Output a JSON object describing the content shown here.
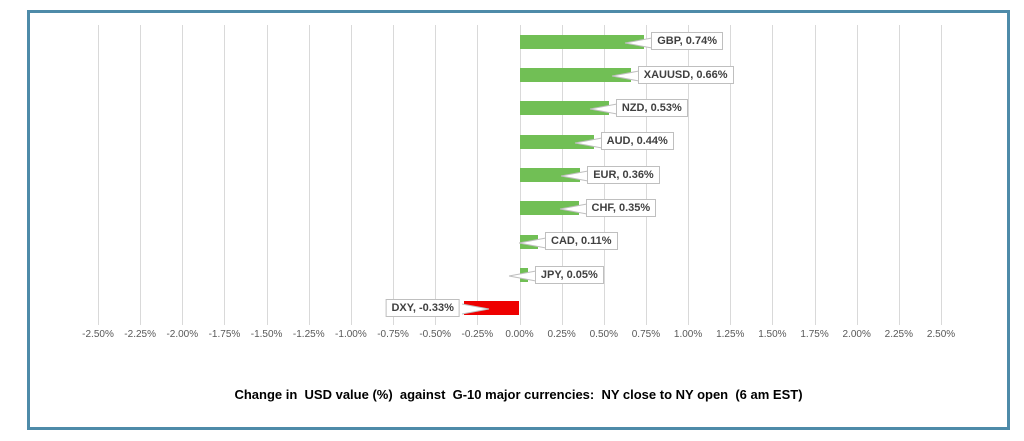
{
  "chart_data": {
    "type": "bar",
    "orientation": "horizontal",
    "title": "Change in  USD value (%)  against  G-10 major currencies:  NY close to NY open  (6 am EST)",
    "categories": [
      "GBP",
      "XAUUSD",
      "NZD",
      "AUD",
      "EUR",
      "CHF",
      "CAD",
      "JPY",
      "DXY"
    ],
    "values": [
      0.74,
      0.66,
      0.53,
      0.44,
      0.36,
      0.35,
      0.11,
      0.05,
      -0.33
    ],
    "labels": [
      "GBP, 0.74%",
      "XAUUSD, 0.66%",
      "NZD, 0.53%",
      "AUD, 0.44%",
      "EUR, 0.36%",
      "CHF, 0.35%",
      "CAD, 0.11%",
      "JPY, 0.05%",
      "DXY, -0.33%"
    ],
    "x_ticks": [
      "-2.50%",
      "-2.25%",
      "-2.00%",
      "-1.75%",
      "-1.50%",
      "-1.25%",
      "-1.00%",
      "-0.75%",
      "-0.50%",
      "-0.25%",
      "0.00%",
      "0.25%",
      "0.50%",
      "0.75%",
      "1.00%",
      "1.25%",
      "1.50%",
      "1.75%",
      "2.00%",
      "2.25%",
      "2.50%"
    ],
    "xlim": [
      -2.5,
      2.5
    ],
    "grid": true,
    "legend": "none",
    "colors": {
      "positive_bar": "#71bf55",
      "negative_bar": "#ee0000",
      "frame_border": "#4e8ba9",
      "gridline": "#d9d9d9",
      "tick_text": "#595959",
      "label_text": "#404040",
      "label_border": "#bfbfbf"
    }
  }
}
